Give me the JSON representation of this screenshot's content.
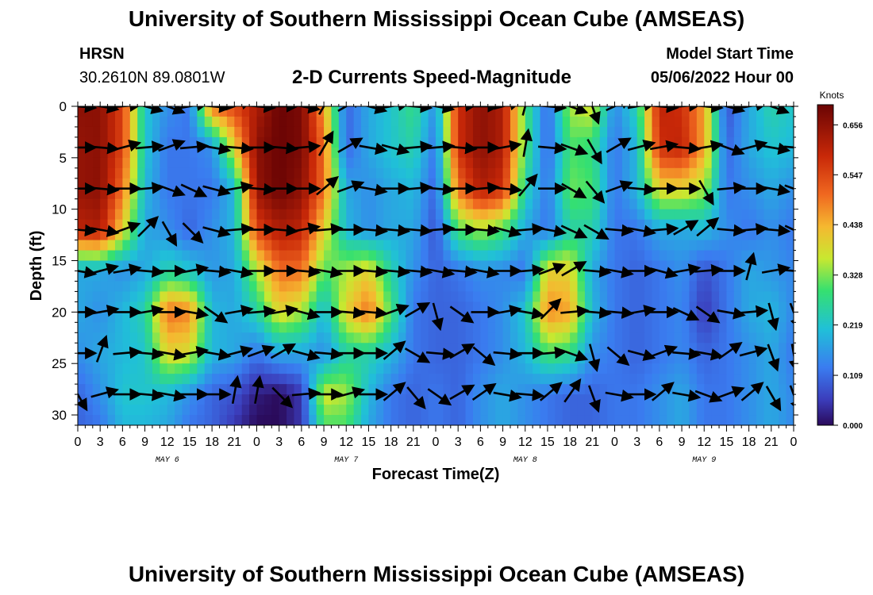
{
  "header": {
    "title": "University of Southern Mississippi Ocean Cube (AMSEAS)",
    "station": "HRSN",
    "coords": "30.2610N  89.0801W",
    "chart_title": "2-D Currents Speed-Magnitude",
    "model_label": "Model Start Time",
    "model_start": "05/06/2022 Hour 00"
  },
  "footer": {
    "title": "University of Southern Mississippi Ocean Cube (AMSEAS)"
  },
  "chart_data": {
    "type": "heatmap",
    "title": "2-D Currents Speed-Magnitude",
    "xlabel": "Forecast Time(Z)",
    "ylabel": "Depth (ft)",
    "x_hours": [
      0,
      96
    ],
    "ylim": [
      0,
      31
    ],
    "x_tick_labels": [
      "0",
      "3",
      "6",
      "9",
      "12",
      "15",
      "18",
      "21",
      "0",
      "3",
      "6",
      "9",
      "12",
      "15",
      "18",
      "21",
      "0",
      "3",
      "6",
      "9",
      "12",
      "15",
      "18",
      "21",
      "0",
      "3",
      "6",
      "9",
      "12",
      "15",
      "18",
      "21",
      "0"
    ],
    "y_ticks": [
      0,
      5,
      10,
      15,
      20,
      25,
      30
    ],
    "day_labels": [
      "MAY 6",
      "MAY 7",
      "MAY 8",
      "MAY 9"
    ],
    "colorbar": {
      "unit": "Knots",
      "ticks": [
        "0.656",
        "0.547",
        "0.438",
        "0.328",
        "0.219",
        "0.109",
        "0.000"
      ],
      "min": 0.0,
      "max": 0.7
    },
    "arrow_depths": [
      0,
      4,
      8,
      12,
      16,
      20,
      24,
      28
    ],
    "speed_grid": {
      "hours": [
        0,
        3,
        6,
        9,
        12,
        15,
        18,
        21,
        24,
        27,
        30,
        33,
        36,
        39,
        42,
        45,
        48,
        51,
        54,
        57,
        60,
        63,
        66,
        69,
        72,
        75,
        78,
        81,
        84,
        87,
        90,
        93,
        96
      ],
      "depths": [
        0,
        4,
        8,
        12,
        16,
        20,
        24,
        28,
        31
      ],
      "rows": [
        [
          0.66,
          0.66,
          0.55,
          0.22,
          0.15,
          0.12,
          0.5,
          0.55,
          0.62,
          0.7,
          0.68,
          0.45,
          0.1,
          0.18,
          0.22,
          0.28,
          0.15,
          0.58,
          0.66,
          0.62,
          0.3,
          0.1,
          0.35,
          0.38,
          0.14,
          0.25,
          0.6,
          0.58,
          0.45,
          0.08,
          0.18,
          0.25,
          0.22
        ],
        [
          0.65,
          0.66,
          0.55,
          0.22,
          0.12,
          0.12,
          0.15,
          0.4,
          0.66,
          0.7,
          0.68,
          0.5,
          0.1,
          0.18,
          0.22,
          0.25,
          0.12,
          0.58,
          0.66,
          0.62,
          0.3,
          0.1,
          0.3,
          0.28,
          0.12,
          0.2,
          0.58,
          0.6,
          0.45,
          0.1,
          0.18,
          0.22,
          0.2
        ],
        [
          0.65,
          0.66,
          0.5,
          0.2,
          0.12,
          0.12,
          0.12,
          0.2,
          0.65,
          0.7,
          0.66,
          0.5,
          0.18,
          0.15,
          0.18,
          0.2,
          0.1,
          0.5,
          0.62,
          0.58,
          0.25,
          0.12,
          0.32,
          0.3,
          0.12,
          0.2,
          0.4,
          0.4,
          0.35,
          0.12,
          0.15,
          0.18,
          0.15
        ],
        [
          0.6,
          0.62,
          0.4,
          0.18,
          0.15,
          0.1,
          0.15,
          0.2,
          0.55,
          0.62,
          0.6,
          0.4,
          0.2,
          0.15,
          0.18,
          0.18,
          0.08,
          0.3,
          0.35,
          0.3,
          0.18,
          0.12,
          0.25,
          0.25,
          0.12,
          0.12,
          0.18,
          0.18,
          0.2,
          0.15,
          0.12,
          0.15,
          0.12
        ],
        [
          0.18,
          0.18,
          0.15,
          0.18,
          0.25,
          0.22,
          0.16,
          0.18,
          0.35,
          0.5,
          0.5,
          0.3,
          0.35,
          0.4,
          0.25,
          0.15,
          0.1,
          0.12,
          0.15,
          0.14,
          0.12,
          0.4,
          0.4,
          0.18,
          0.12,
          0.1,
          0.12,
          0.15,
          0.08,
          0.12,
          0.18,
          0.16,
          0.14
        ],
        [
          0.18,
          0.15,
          0.2,
          0.25,
          0.5,
          0.48,
          0.2,
          0.18,
          0.25,
          0.4,
          0.35,
          0.2,
          0.4,
          0.5,
          0.3,
          0.12,
          0.1,
          0.1,
          0.12,
          0.15,
          0.22,
          0.48,
          0.45,
          0.2,
          0.12,
          0.1,
          0.12,
          0.14,
          0.05,
          0.12,
          0.18,
          0.2,
          0.14
        ],
        [
          0.15,
          0.18,
          0.2,
          0.22,
          0.4,
          0.38,
          0.2,
          0.18,
          0.12,
          0.18,
          0.18,
          0.15,
          0.25,
          0.25,
          0.2,
          0.12,
          0.1,
          0.1,
          0.12,
          0.15,
          0.2,
          0.3,
          0.28,
          0.15,
          0.12,
          0.1,
          0.12,
          0.14,
          0.1,
          0.12,
          0.15,
          0.18,
          0.12
        ],
        [
          0.1,
          0.15,
          0.22,
          0.22,
          0.2,
          0.15,
          0.1,
          0.08,
          0.02,
          0.0,
          0.05,
          0.38,
          0.35,
          0.2,
          0.12,
          0.1,
          0.12,
          0.1,
          0.15,
          0.18,
          0.15,
          0.12,
          0.1,
          0.1,
          0.12,
          0.12,
          0.15,
          0.18,
          0.12,
          0.12,
          0.15,
          0.18,
          0.14
        ],
        [
          0.1,
          0.12,
          0.2,
          0.2,
          0.18,
          0.12,
          0.1,
          0.05,
          0.0,
          0.0,
          0.05,
          0.3,
          0.3,
          0.18,
          0.12,
          0.1,
          0.12,
          0.1,
          0.15,
          0.18,
          0.15,
          0.12,
          0.1,
          0.1,
          0.12,
          0.12,
          0.15,
          0.18,
          0.12,
          0.12,
          0.15,
          0.18,
          0.14
        ]
      ]
    },
    "arrow_directions": {
      "note": "direction angle in degrees (0 = pointing right, positive = clockwise/down)",
      "rows": [
        [
          5,
          10,
          -5,
          15,
          20,
          -10,
          5,
          -20,
          5,
          0,
          10,
          -60,
          -30,
          15,
          -10,
          5,
          10,
          -5,
          0,
          -15,
          -75,
          5,
          20,
          70,
          -25,
          -10,
          5,
          -5,
          5,
          15,
          -10,
          20,
          10
        ],
        [
          0,
          5,
          -15,
          -5,
          -20,
          -5,
          10,
          5,
          0,
          5,
          -5,
          -60,
          -30,
          10,
          15,
          -5,
          -5,
          5,
          0,
          -10,
          -80,
          5,
          20,
          60,
          -30,
          -15,
          -10,
          5,
          -10,
          20,
          -15,
          10,
          5
        ],
        [
          0,
          5,
          0,
          -5,
          20,
          25,
          15,
          -10,
          5,
          0,
          0,
          -40,
          -20,
          10,
          0,
          -5,
          5,
          0,
          -5,
          5,
          -50,
          0,
          30,
          50,
          -20,
          5,
          0,
          0,
          60,
          -5,
          0,
          10,
          20
        ],
        [
          5,
          10,
          -20,
          -45,
          60,
          45,
          15,
          -5,
          0,
          5,
          -10,
          -5,
          0,
          5,
          5,
          5,
          -5,
          0,
          5,
          15,
          -5,
          10,
          25,
          30,
          5,
          10,
          -5,
          -30,
          -40,
          5,
          -5,
          5,
          25
        ],
        [
          10,
          -15,
          -10,
          5,
          0,
          -10,
          5,
          10,
          0,
          0,
          5,
          10,
          0,
          5,
          5,
          5,
          10,
          5,
          10,
          0,
          -5,
          -20,
          -30,
          5,
          10,
          0,
          15,
          -10,
          -5,
          0,
          -75,
          -10,
          5
        ],
        [
          0,
          -10,
          0,
          -10,
          0,
          10,
          35,
          -10,
          -5,
          -10,
          15,
          0,
          5,
          5,
          -20,
          -30,
          75,
          35,
          0,
          -10,
          10,
          -45,
          -5,
          5,
          5,
          -10,
          0,
          25,
          35,
          10,
          -5,
          75,
          70
        ],
        [
          0,
          -70,
          -5,
          5,
          10,
          -10,
          10,
          -15,
          -20,
          -30,
          15,
          5,
          0,
          0,
          -40,
          30,
          5,
          -30,
          40,
          5,
          0,
          -5,
          20,
          75,
          40,
          15,
          -20,
          5,
          10,
          -35,
          -15,
          70,
          80
        ],
        [
          60,
          -15,
          0,
          5,
          10,
          0,
          0,
          -80,
          -80,
          45,
          -5,
          0,
          -15,
          0,
          -40,
          50,
          35,
          -30,
          -35,
          10,
          5,
          -40,
          -55,
          70,
          10,
          0,
          -40,
          10,
          20,
          -20,
          -40,
          60,
          70
        ]
      ]
    }
  }
}
